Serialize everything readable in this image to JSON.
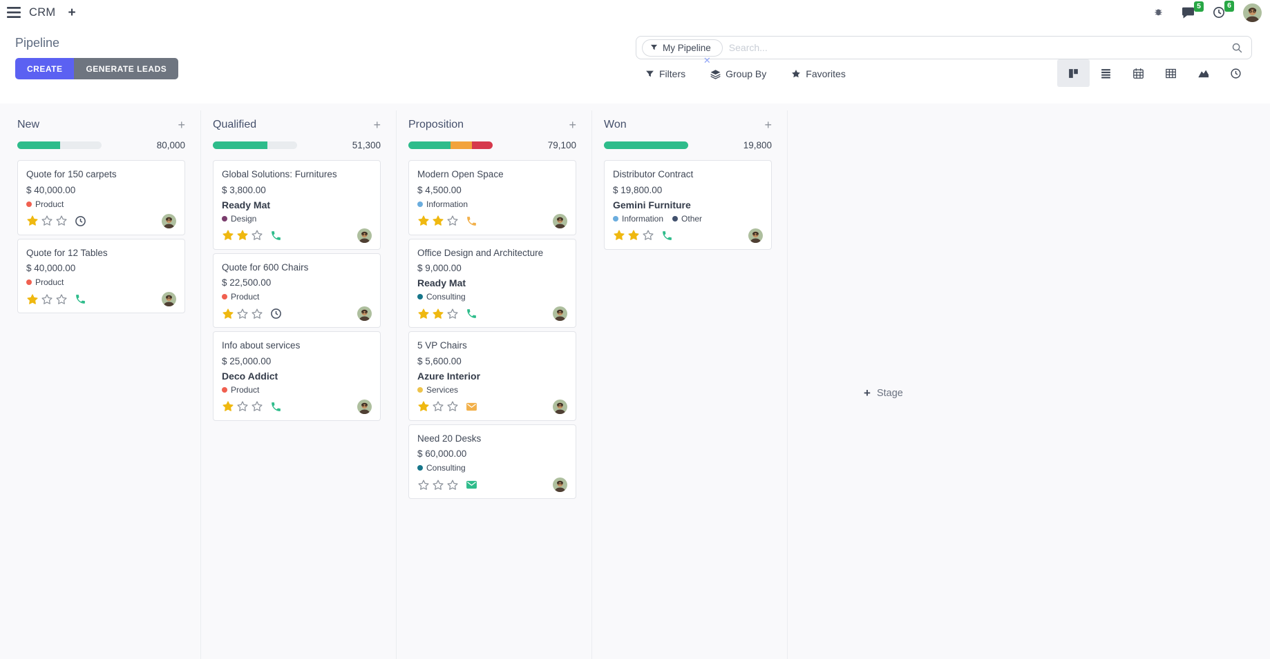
{
  "navbar": {
    "app_name": "CRM",
    "messages_badge": "5",
    "activities_badge": "6"
  },
  "control_panel": {
    "title": "Pipeline",
    "create_label": "CREATE",
    "generate_leads_label": "GENERATE LEADS",
    "search": {
      "facet_label": "My Pipeline",
      "placeholder": "Search..."
    },
    "filters_label": "Filters",
    "group_by_label": "Group By",
    "favorites_label": "Favorites"
  },
  "view_switcher": {
    "active": "kanban",
    "views": [
      "kanban",
      "list",
      "calendar",
      "pivot",
      "graph",
      "activity"
    ]
  },
  "kanban": {
    "add_stage_label": "Stage",
    "columns": [
      {
        "name": "New",
        "total": "80,000",
        "progress": [
          {
            "color": "#2ebc8b",
            "pct": 51
          }
        ],
        "cards": [
          {
            "title": "Quote for 150 carpets",
            "amount": "$ 40,000.00",
            "partner": "",
            "tags": [
              {
                "label": "Product",
                "color": "#f06050"
              }
            ],
            "stars": 1,
            "activity": {
              "type": "clock",
              "color": "#495263"
            }
          },
          {
            "title": "Quote for 12 Tables",
            "amount": "$ 40,000.00",
            "partner": "",
            "tags": [
              {
                "label": "Product",
                "color": "#f06050"
              }
            ],
            "stars": 1,
            "activity": {
              "type": "phone",
              "color": "#2ebc8b"
            }
          }
        ]
      },
      {
        "name": "Qualified",
        "total": "51,300",
        "progress": [
          {
            "color": "#2ebc8b",
            "pct": 65
          }
        ],
        "cards": [
          {
            "title": "Global Solutions: Furnitures",
            "amount": "$ 3,800.00",
            "partner": "Ready Mat",
            "tags": [
              {
                "label": "Design",
                "color": "#7a3d6d"
              }
            ],
            "stars": 2,
            "activity": {
              "type": "phone",
              "color": "#2ebc8b"
            }
          },
          {
            "title": "Quote for 600 Chairs",
            "amount": "$ 22,500.00",
            "partner": "",
            "tags": [
              {
                "label": "Product",
                "color": "#f06050"
              }
            ],
            "stars": 1,
            "activity": {
              "type": "clock",
              "color": "#495263"
            }
          },
          {
            "title": "Info about services",
            "amount": "$ 25,000.00",
            "partner": "Deco Addict",
            "tags": [
              {
                "label": "Product",
                "color": "#f06050"
              }
            ],
            "stars": 1,
            "activity": {
              "type": "phone",
              "color": "#2ebc8b"
            }
          }
        ]
      },
      {
        "name": "Proposition",
        "total": "79,100",
        "progress": [
          {
            "color": "#2ebc8b",
            "pct": 50
          },
          {
            "color": "#f2a33c",
            "pct": 25
          },
          {
            "color": "#d6394c",
            "pct": 25
          }
        ],
        "cards": [
          {
            "title": "Modern Open Space",
            "amount": "$ 4,500.00",
            "partner": "",
            "tags": [
              {
                "label": "Information",
                "color": "#6badde"
              }
            ],
            "stars": 2,
            "activity": {
              "type": "phone",
              "color": "#f2b04a"
            }
          },
          {
            "title": "Office Design and Architecture",
            "amount": "$ 9,000.00",
            "partner": "Ready Mat",
            "tags": [
              {
                "label": "Consulting",
                "color": "#17768a"
              }
            ],
            "stars": 2,
            "activity": {
              "type": "phone",
              "color": "#2ebc8b"
            }
          },
          {
            "title": "5 VP Chairs",
            "amount": "$ 5,600.00",
            "partner": "Azure Interior",
            "tags": [
              {
                "label": "Services",
                "color": "#edc34b"
              }
            ],
            "stars": 1,
            "activity": {
              "type": "envelope",
              "color": "#f2b04a"
            }
          },
          {
            "title": "Need 20 Desks",
            "amount": "$ 60,000.00",
            "partner": "",
            "tags": [
              {
                "label": "Consulting",
                "color": "#17768a"
              }
            ],
            "stars": 0,
            "activity": {
              "type": "envelope",
              "color": "#2ebc8b"
            }
          }
        ]
      },
      {
        "name": "Won",
        "total": "19,800",
        "progress": [
          {
            "color": "#2ebc8b",
            "pct": 100
          }
        ],
        "cards": [
          {
            "title": "Distributor Contract",
            "amount": "$ 19,800.00",
            "partner": "Gemini Furniture",
            "tags": [
              {
                "label": "Information",
                "color": "#6badde"
              },
              {
                "label": "Other",
                "color": "#41516d"
              }
            ],
            "stars": 2,
            "activity": {
              "type": "phone",
              "color": "#2ebc8b"
            }
          }
        ]
      }
    ]
  },
  "colors": {
    "accent": "#5b61f2",
    "secondary_button": "#6e7580",
    "success": "#2ebc8b",
    "warning": "#f2a33c",
    "danger": "#d6394c",
    "star_filled": "#efb810",
    "star_empty_stroke": "#8d939c",
    "badge_green": "#28a745"
  }
}
